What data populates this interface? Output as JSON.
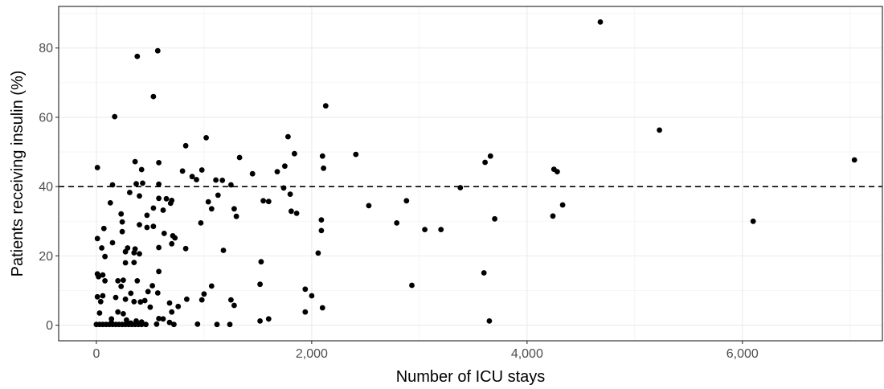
{
  "chart_data": {
    "type": "scatter",
    "title": "",
    "xlabel": "Number of ICU stays",
    "ylabel": "Patients receiving insulin (%)",
    "xlim": [
      -350,
      7300
    ],
    "ylim": [
      -4.5,
      92
    ],
    "xticks": [
      0,
      2000,
      4000,
      6000
    ],
    "xtick_labels": [
      "0",
      "2,000",
      "4,000",
      "6,000"
    ],
    "yticks": [
      0,
      20,
      40,
      60,
      80
    ],
    "ytick_labels": [
      "0",
      "20",
      "40",
      "60",
      "80"
    ],
    "reference_line": {
      "y": 40,
      "style": "dashed"
    },
    "grid": true,
    "theme": "bw",
    "point_color": "#000000",
    "points": [
      [
        4680,
        87.5
      ],
      [
        570,
        79.2
      ],
      [
        380,
        77.6
      ],
      [
        530,
        66.0
      ],
      [
        2130,
        63.3
      ],
      [
        170,
        60.2
      ],
      [
        5230,
        56.3
      ],
      [
        1780,
        54.4
      ],
      [
        1020,
        54.1
      ],
      [
        830,
        51.8
      ],
      [
        1840,
        49.5
      ],
      [
        2410,
        49.3
      ],
      [
        2100,
        48.8
      ],
      [
        3660,
        48.8
      ],
      [
        1330,
        48.4
      ],
      [
        7040,
        47.7
      ],
      [
        360,
        47.2
      ],
      [
        3610,
        47.0
      ],
      [
        580,
        46.9
      ],
      [
        1750,
        45.9
      ],
      [
        2110,
        45.3
      ],
      [
        10,
        45.5
      ],
      [
        4250,
        45.0
      ],
      [
        4280,
        44.3
      ],
      [
        420,
        44.9
      ],
      [
        980,
        44.8
      ],
      [
        800,
        44.5
      ],
      [
        1680,
        44.3
      ],
      [
        1450,
        43.7
      ],
      [
        890,
        42.9
      ],
      [
        930,
        42.0
      ],
      [
        1110,
        41.9
      ],
      [
        1170,
        41.8
      ],
      [
        430,
        41.0
      ],
      [
        1250,
        40.5
      ],
      [
        150,
        40.5
      ],
      [
        370,
        40.8
      ],
      [
        580,
        40.7
      ],
      [
        3380,
        39.7
      ],
      [
        1740,
        39.6
      ],
      [
        310,
        38.3
      ],
      [
        1800,
        37.8
      ],
      [
        1130,
        37.5
      ],
      [
        400,
        37.3
      ],
      [
        580,
        36.6
      ],
      [
        650,
        36.5
      ],
      [
        700,
        36.0
      ],
      [
        2880,
        35.9
      ],
      [
        1550,
        35.9
      ],
      [
        1600,
        35.7
      ],
      [
        1040,
        35.6
      ],
      [
        130,
        35.3
      ],
      [
        690,
        35.2
      ],
      [
        4330,
        34.7
      ],
      [
        2530,
        34.5
      ],
      [
        530,
        33.8
      ],
      [
        1070,
        33.6
      ],
      [
        1280,
        33.6
      ],
      [
        620,
        33.2
      ],
      [
        1810,
        32.9
      ],
      [
        1860,
        32.3
      ],
      [
        230,
        32.1
      ],
      [
        470,
        31.7
      ],
      [
        1300,
        31.4
      ],
      [
        4240,
        31.5
      ],
      [
        3700,
        30.7
      ],
      [
        2090,
        30.4
      ],
      [
        6100,
        30.0
      ],
      [
        2790,
        29.5
      ],
      [
        970,
        29.5
      ],
      [
        240,
        29.8
      ],
      [
        400,
        29.0
      ],
      [
        530,
        28.5
      ],
      [
        470,
        28.2
      ],
      [
        70,
        27.9
      ],
      [
        3050,
        27.6
      ],
      [
        3200,
        27.6
      ],
      [
        2090,
        27.3
      ],
      [
        240,
        27.0
      ],
      [
        630,
        26.5
      ],
      [
        710,
        25.8
      ],
      [
        730,
        25.2
      ],
      [
        10,
        25.0
      ],
      [
        150,
        23.8
      ],
      [
        700,
        23.5
      ],
      [
        580,
        22.4
      ],
      [
        290,
        22.3
      ],
      [
        50,
        22.3
      ],
      [
        360,
        22.0
      ],
      [
        830,
        22.1
      ],
      [
        1180,
        21.6
      ],
      [
        270,
        21.2
      ],
      [
        350,
        20.9
      ],
      [
        400,
        20.6
      ],
      [
        2060,
        20.8
      ],
      [
        80,
        19.8
      ],
      [
        1530,
        18.3
      ],
      [
        270,
        18.0
      ],
      [
        350,
        18.1
      ],
      [
        580,
        15.5
      ],
      [
        3600,
        15.1
      ],
      [
        10,
        14.8
      ],
      [
        60,
        14.5
      ],
      [
        20,
        14.0
      ],
      [
        250,
        13.0
      ],
      [
        200,
        12.8
      ],
      [
        380,
        12.8
      ],
      [
        80,
        12.8
      ],
      [
        1070,
        11.3
      ],
      [
        1520,
        11.8
      ],
      [
        2930,
        11.5
      ],
      [
        520,
        11.4
      ],
      [
        230,
        11.2
      ],
      [
        1940,
        10.4
      ],
      [
        480,
        9.7
      ],
      [
        320,
        9.2
      ],
      [
        570,
        9.3
      ],
      [
        1000,
        9.0
      ],
      [
        2000,
        8.5
      ],
      [
        60,
        8.5
      ],
      [
        10,
        8.2
      ],
      [
        180,
        8.0
      ],
      [
        270,
        7.5
      ],
      [
        840,
        7.5
      ],
      [
        980,
        7.3
      ],
      [
        1250,
        7.3
      ],
      [
        40,
        6.8
      ],
      [
        350,
        6.8
      ],
      [
        410,
        6.7
      ],
      [
        450,
        7.1
      ],
      [
        680,
        6.4
      ],
      [
        1280,
        5.7
      ],
      [
        760,
        5.4
      ],
      [
        500,
        5.2
      ],
      [
        2100,
        5.0
      ],
      [
        200,
        3.8
      ],
      [
        1940,
        3.8
      ],
      [
        700,
        3.8
      ],
      [
        250,
        3.3
      ],
      [
        30,
        3.5
      ],
      [
        140,
        1.8
      ],
      [
        280,
        1.5
      ],
      [
        580,
        1.9
      ],
      [
        620,
        1.8
      ],
      [
        1600,
        1.8
      ],
      [
        1520,
        1.2
      ],
      [
        3650,
        1.2
      ],
      [
        370,
        1.2
      ],
      [
        680,
        0.8
      ],
      [
        940,
        0.3
      ],
      [
        1120,
        0.2
      ],
      [
        1240,
        0.2
      ],
      [
        0,
        0.2
      ],
      [
        30,
        0.2
      ],
      [
        60,
        0.2
      ],
      [
        90,
        0.2
      ],
      [
        120,
        0.2
      ],
      [
        150,
        0.2
      ],
      [
        180,
        0.2
      ],
      [
        210,
        0.2
      ],
      [
        240,
        0.2
      ],
      [
        270,
        0.2
      ],
      [
        300,
        0.2
      ],
      [
        330,
        0.2
      ],
      [
        360,
        0.2
      ],
      [
        390,
        0.2
      ],
      [
        420,
        0.2
      ],
      [
        460,
        0.2
      ],
      [
        720,
        0.2
      ],
      [
        560,
        0.3
      ],
      [
        140,
        0.7
      ],
      [
        320,
        0.6
      ],
      [
        420,
        0.9
      ]
    ]
  }
}
